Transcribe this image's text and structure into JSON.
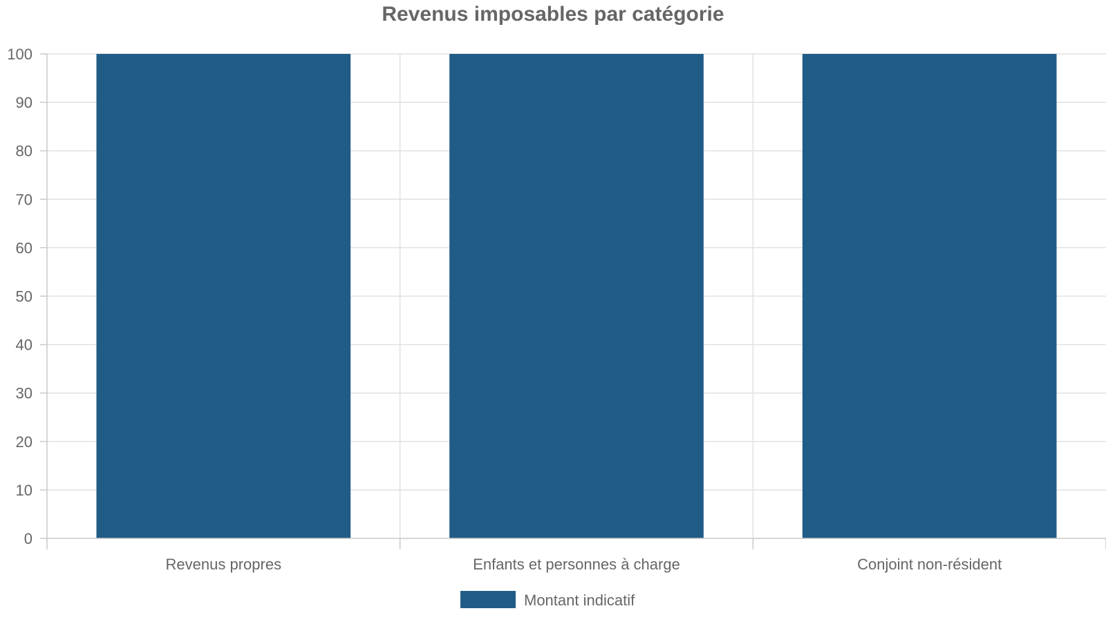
{
  "chart_data": {
    "type": "bar",
    "title": "Revenus imposables par catégorie",
    "categories": [
      "Revenus propres",
      "Enfants et personnes à charge",
      "Conjoint non-résident"
    ],
    "series": [
      {
        "name": "Montant indicatif",
        "values": [
          100,
          100,
          100
        ],
        "color": "#215c87"
      }
    ],
    "ylim": [
      0,
      100
    ],
    "yticks": [
      0,
      10,
      20,
      30,
      40,
      50,
      60,
      70,
      80,
      90,
      100
    ],
    "xlabel": "",
    "ylabel": "",
    "grid": true,
    "legend_position": "bottom-center"
  }
}
